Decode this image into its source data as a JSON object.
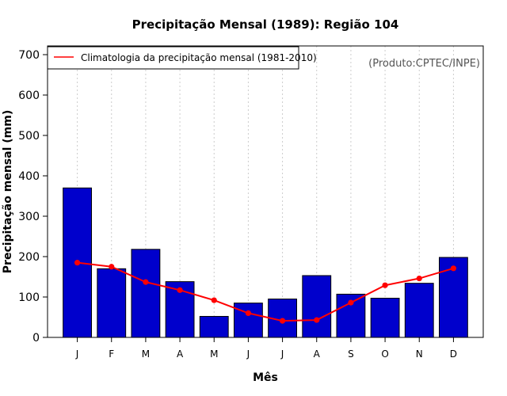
{
  "chart_data": {
    "type": "bar",
    "title": "Precipitação Mensal (1989): Região 104",
    "xlabel": "Mês",
    "ylabel": "Precipitação mensal (mm)",
    "ylim": [
      0,
      700
    ],
    "yticks": [
      0,
      100,
      200,
      300,
      400,
      500,
      600,
      700
    ],
    "categories": [
      "J",
      "F",
      "M",
      "A",
      "M",
      "J",
      "J",
      "A",
      "S",
      "O",
      "N",
      "D"
    ],
    "values": [
      370,
      170,
      218,
      138,
      52,
      85,
      95,
      153,
      107,
      97,
      134,
      198
    ],
    "line_series": {
      "name": "Climatologia da precipitação mensal (1981-2010)",
      "values": [
        185,
        175,
        137,
        117,
        92,
        60,
        41,
        43,
        86,
        129,
        146,
        171
      ]
    },
    "legend_position": "top-left",
    "credit": "(Produto:CPTEC/INPE)",
    "colors": {
      "bar_fill": "#0000CC",
      "bar_stroke": "#000000",
      "line": "#FF0000",
      "grid": "#cccccc"
    }
  }
}
